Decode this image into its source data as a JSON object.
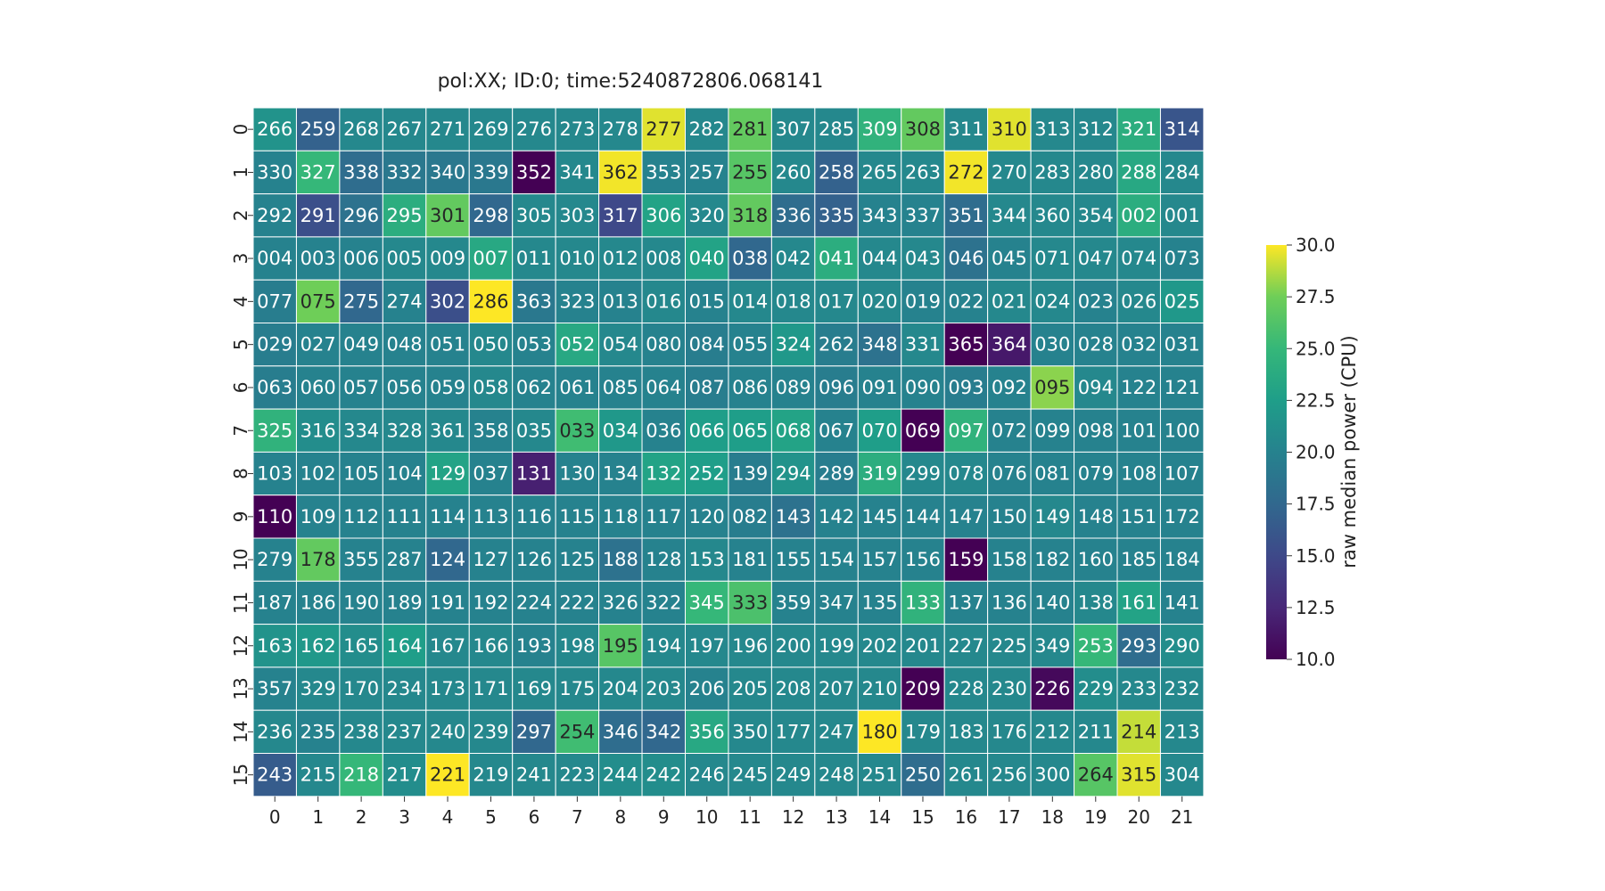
{
  "chart_data": {
    "type": "heatmap",
    "title": "pol:XX; ID:0; time:5240872806.068141",
    "xlabel": "",
    "ylabel": "",
    "x_tick_labels": [
      "0",
      "1",
      "2",
      "3",
      "4",
      "5",
      "6",
      "7",
      "8",
      "9",
      "10",
      "11",
      "12",
      "13",
      "14",
      "15",
      "16",
      "17",
      "18",
      "19",
      "20",
      "21"
    ],
    "y_tick_labels": [
      "0",
      "1",
      "2",
      "3",
      "4",
      "5",
      "6",
      "7",
      "8",
      "9",
      "10",
      "11",
      "12",
      "13",
      "14",
      "15"
    ],
    "cell_labels": [
      [
        "266",
        "259",
        "268",
        "267",
        "271",
        "269",
        "276",
        "273",
        "278",
        "277",
        "282",
        "281",
        "307",
        "285",
        "309",
        "308",
        "311",
        "310",
        "313",
        "312",
        "321",
        "314"
      ],
      [
        "330",
        "327",
        "338",
        "332",
        "340",
        "339",
        "352",
        "341",
        "362",
        "353",
        "257",
        "255",
        "260",
        "258",
        "265",
        "263",
        "272",
        "270",
        "283",
        "280",
        "288",
        "284"
      ],
      [
        "292",
        "291",
        "296",
        "295",
        "301",
        "298",
        "305",
        "303",
        "317",
        "306",
        "320",
        "318",
        "336",
        "335",
        "343",
        "337",
        "351",
        "344",
        "360",
        "354",
        "002",
        "001"
      ],
      [
        "004",
        "003",
        "006",
        "005",
        "009",
        "007",
        "011",
        "010",
        "012",
        "008",
        "040",
        "038",
        "042",
        "041",
        "044",
        "043",
        "046",
        "045",
        "071",
        "047",
        "074",
        "073"
      ],
      [
        "077",
        "075",
        "275",
        "274",
        "302",
        "286",
        "363",
        "323",
        "013",
        "016",
        "015",
        "014",
        "018",
        "017",
        "020",
        "019",
        "022",
        "021",
        "024",
        "023",
        "026",
        "025"
      ],
      [
        "029",
        "027",
        "049",
        "048",
        "051",
        "050",
        "053",
        "052",
        "054",
        "080",
        "084",
        "055",
        "324",
        "262",
        "348",
        "331",
        "365",
        "364",
        "030",
        "028",
        "032",
        "031"
      ],
      [
        "063",
        "060",
        "057",
        "056",
        "059",
        "058",
        "062",
        "061",
        "085",
        "064",
        "087",
        "086",
        "089",
        "096",
        "091",
        "090",
        "093",
        "092",
        "095",
        "094",
        "122",
        "121"
      ],
      [
        "325",
        "316",
        "334",
        "328",
        "361",
        "358",
        "035",
        "033",
        "034",
        "036",
        "066",
        "065",
        "068",
        "067",
        "070",
        "069",
        "097",
        "072",
        "099",
        "098",
        "101",
        "100"
      ],
      [
        "103",
        "102",
        "105",
        "104",
        "129",
        "037",
        "131",
        "130",
        "134",
        "132",
        "252",
        "139",
        "294",
        "289",
        "319",
        "299",
        "078",
        "076",
        "081",
        "079",
        "108",
        "107"
      ],
      [
        "110",
        "109",
        "112",
        "111",
        "114",
        "113",
        "116",
        "115",
        "118",
        "117",
        "120",
        "082",
        "143",
        "142",
        "145",
        "144",
        "147",
        "150",
        "149",
        "148",
        "151",
        "172"
      ],
      [
        "279",
        "178",
        "355",
        "287",
        "124",
        "127",
        "126",
        "125",
        "188",
        "128",
        "153",
        "181",
        "155",
        "154",
        "157",
        "156",
        "159",
        "158",
        "182",
        "160",
        "185",
        "184"
      ],
      [
        "187",
        "186",
        "190",
        "189",
        "191",
        "192",
        "224",
        "222",
        "326",
        "322",
        "345",
        "333",
        "359",
        "347",
        "135",
        "133",
        "137",
        "136",
        "140",
        "138",
        "161",
        "141"
      ],
      [
        "163",
        "162",
        "165",
        "164",
        "167",
        "166",
        "193",
        "198",
        "195",
        "194",
        "197",
        "196",
        "200",
        "199",
        "202",
        "201",
        "227",
        "225",
        "349",
        "253",
        "293",
        "290"
      ],
      [
        "357",
        "329",
        "170",
        "234",
        "173",
        "171",
        "169",
        "175",
        "204",
        "203",
        "206",
        "205",
        "208",
        "207",
        "210",
        "209",
        "228",
        "230",
        "226",
        "229",
        "233",
        "232"
      ],
      [
        "236",
        "235",
        "238",
        "237",
        "240",
        "239",
        "297",
        "254",
        "346",
        "342",
        "356",
        "350",
        "177",
        "247",
        "180",
        "179",
        "183",
        "176",
        "212",
        "211",
        "214",
        "213"
      ],
      [
        "243",
        "215",
        "218",
        "217",
        "221",
        "219",
        "241",
        "223",
        "244",
        "242",
        "246",
        "245",
        "249",
        "248",
        "251",
        "250",
        "261",
        "256",
        "300",
        "264",
        "315",
        "304"
      ]
    ],
    "values": [
      [
        21.5,
        17.0,
        20.5,
        20.5,
        20.5,
        20.5,
        20.5,
        20.5,
        20.5,
        29.5,
        20.5,
        27.0,
        20.5,
        20.5,
        24.5,
        27.0,
        20.5,
        29.5,
        20.5,
        20.5,
        24.0,
        16.0
      ],
      [
        20.0,
        25.0,
        18.0,
        19.0,
        19.0,
        19.0,
        10.0,
        20.5,
        29.8,
        20.0,
        20.0,
        26.5,
        20.5,
        17.0,
        20.5,
        20.5,
        29.8,
        20.5,
        20.5,
        20.5,
        23.5,
        20.5
      ],
      [
        20.0,
        15.5,
        18.5,
        24.0,
        27.0,
        17.5,
        20.5,
        20.5,
        15.0,
        23.0,
        20.5,
        27.0,
        18.0,
        17.0,
        20.0,
        20.0,
        18.0,
        20.5,
        20.5,
        20.5,
        24.0,
        20.5
      ],
      [
        20.0,
        20.0,
        20.0,
        20.5,
        20.5,
        23.5,
        20.5,
        20.5,
        20.5,
        20.5,
        23.0,
        17.5,
        20.5,
        24.0,
        20.5,
        20.5,
        18.5,
        20.0,
        20.5,
        20.5,
        20.5,
        20.0
      ],
      [
        19.5,
        27.5,
        17.5,
        20.0,
        15.5,
        30.0,
        19.0,
        20.0,
        20.0,
        20.5,
        20.0,
        20.5,
        20.5,
        20.5,
        20.5,
        20.0,
        20.0,
        20.5,
        20.5,
        20.0,
        20.5,
        22.0
      ],
      [
        19.5,
        20.0,
        20.0,
        20.0,
        20.0,
        20.5,
        20.0,
        23.5,
        20.5,
        20.0,
        19.5,
        20.0,
        22.0,
        19.5,
        18.5,
        20.5,
        10.0,
        11.5,
        20.0,
        20.0,
        20.0,
        20.0
      ],
      [
        19.5,
        20.0,
        20.0,
        20.0,
        20.0,
        20.5,
        20.0,
        20.0,
        20.0,
        20.0,
        19.5,
        20.0,
        20.0,
        19.5,
        20.0,
        20.0,
        19.5,
        20.0,
        28.0,
        20.5,
        20.0,
        20.0
      ],
      [
        24.5,
        21.0,
        20.5,
        20.5,
        20.5,
        20.0,
        20.5,
        25.5,
        22.0,
        20.0,
        22.5,
        22.5,
        23.0,
        20.0,
        22.5,
        10.0,
        24.5,
        20.0,
        20.0,
        20.0,
        20.0,
        20.0
      ],
      [
        20.0,
        20.0,
        20.0,
        20.0,
        23.0,
        20.0,
        12.0,
        20.0,
        20.0,
        23.0,
        22.5,
        19.5,
        21.5,
        19.5,
        24.0,
        20.5,
        20.5,
        20.0,
        20.0,
        20.0,
        20.0,
        20.0
      ],
      [
        10.0,
        20.0,
        20.0,
        20.0,
        20.0,
        20.0,
        20.0,
        20.0,
        20.0,
        20.0,
        20.0,
        19.5,
        18.5,
        20.0,
        20.0,
        20.0,
        20.0,
        20.0,
        20.5,
        20.0,
        20.0,
        20.0
      ],
      [
        20.0,
        27.0,
        20.0,
        20.0,
        17.5,
        20.0,
        20.0,
        20.0,
        18.5,
        20.0,
        20.5,
        20.0,
        20.0,
        20.0,
        20.0,
        20.0,
        10.0,
        20.0,
        20.0,
        20.0,
        20.0,
        20.0
      ],
      [
        20.0,
        20.0,
        20.0,
        20.0,
        20.0,
        20.0,
        20.0,
        20.0,
        20.0,
        20.0,
        25.0,
        26.0,
        20.0,
        20.0,
        20.0,
        24.5,
        20.0,
        20.0,
        20.0,
        20.5,
        23.0,
        20.0
      ],
      [
        21.5,
        22.0,
        21.0,
        22.5,
        20.5,
        20.5,
        20.0,
        20.5,
        26.5,
        20.5,
        20.5,
        20.5,
        20.5,
        20.5,
        20.5,
        20.5,
        20.5,
        20.5,
        20.5,
        25.0,
        18.0,
        21.0
      ],
      [
        20.0,
        20.5,
        20.5,
        20.5,
        20.5,
        20.5,
        20.5,
        20.5,
        20.5,
        20.5,
        20.0,
        20.5,
        20.5,
        20.5,
        20.5,
        10.0,
        20.5,
        20.5,
        10.5,
        21.0,
        20.5,
        20.5
      ],
      [
        20.5,
        20.0,
        20.5,
        20.5,
        20.5,
        20.5,
        17.5,
        25.5,
        18.0,
        17.5,
        23.5,
        20.5,
        20.5,
        20.5,
        30.0,
        20.5,
        20.5,
        20.5,
        20.5,
        20.5,
        29.0,
        20.5
      ],
      [
        16.5,
        20.5,
        25.0,
        21.0,
        30.0,
        20.5,
        20.5,
        20.5,
        21.0,
        21.0,
        20.5,
        20.5,
        20.5,
        20.5,
        20.5,
        18.0,
        20.5,
        20.5,
        20.5,
        26.5,
        29.5,
        20.5
      ]
    ],
    "colormap": "viridis",
    "colorbar": {
      "label": "raw median power (CPU)",
      "range": [
        10.0,
        30.0
      ],
      "ticks": [
        "10.0",
        "12.5",
        "15.0",
        "17.5",
        "20.0",
        "22.5",
        "25.0",
        "27.5",
        "30.0"
      ],
      "tick_values": [
        10.0,
        12.5,
        15.0,
        17.5,
        20.0,
        22.5,
        25.0,
        27.5,
        30.0
      ]
    },
    "grid": true
  }
}
